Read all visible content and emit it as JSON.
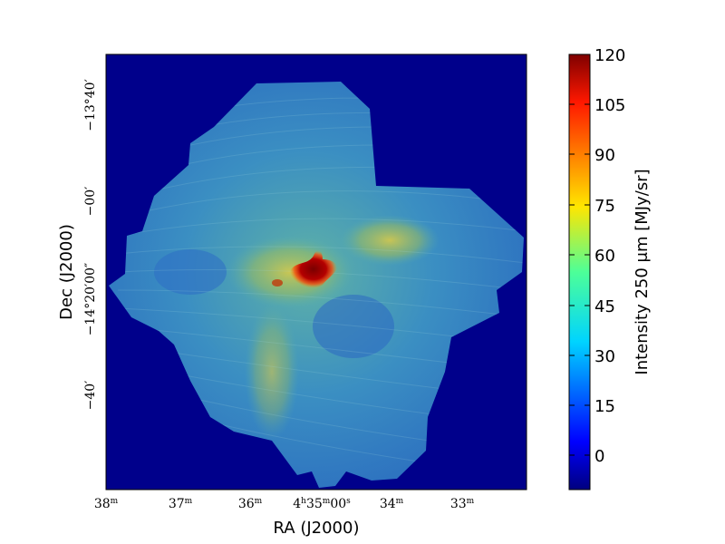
{
  "figure": {
    "xlabel": "RA (J2000)",
    "ylabel": "Dec (J2000)",
    "x_ticks": [
      {
        "main": "38",
        "sup": "m"
      },
      {
        "main": "37",
        "sup": "m"
      },
      {
        "main": "36",
        "sup": "m"
      },
      {
        "main": "4",
        "sup": "h",
        "main2": "35",
        "sup2": "m",
        "main3": "00",
        "sup3": "s"
      },
      {
        "main": "34",
        "sup": "m"
      },
      {
        "main": "33",
        "sup": "m"
      }
    ],
    "y_ticks": [
      {
        "text": "−13°40′"
      },
      {
        "text": "−00′"
      },
      {
        "text": "−14°20′00″"
      },
      {
        "text": "−40′"
      }
    ],
    "colorbar": {
      "label": "Intensity 250 μm [MJy/sr]",
      "ticks": [
        "120",
        "105",
        "90",
        "75",
        "60",
        "45",
        "30",
        "15",
        "0"
      ],
      "vmin": -10,
      "vmax": 120,
      "colormap": "jet"
    },
    "colors": {
      "background_map": "#00008b",
      "cloud_low": "#2a76c8",
      "cloud_mid": "#3fa7b7",
      "cloud_high": "#d4c53c",
      "core": "#8b0000"
    }
  }
}
